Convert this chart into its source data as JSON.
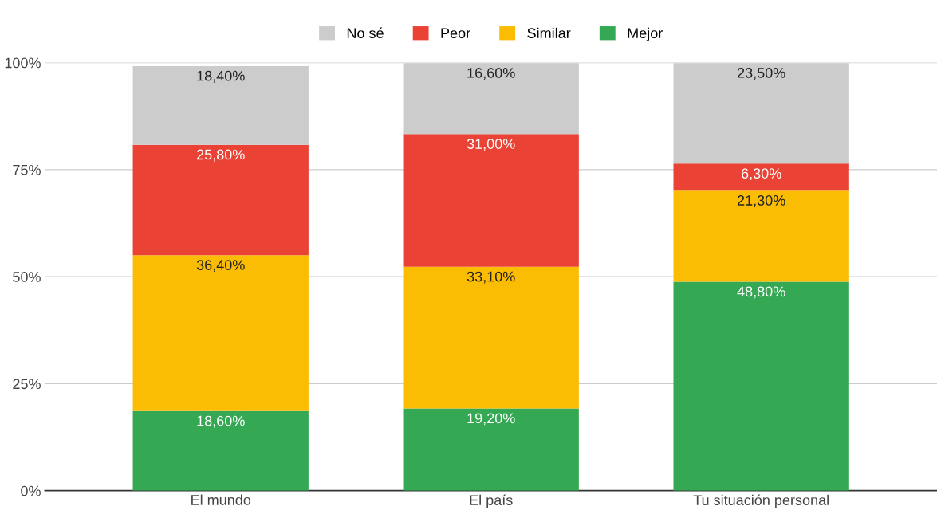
{
  "chart_data": {
    "type": "bar",
    "stacked": true,
    "categories": [
      "El mundo",
      "El país",
      "Tu situación personal"
    ],
    "series": [
      {
        "name": "Mejor",
        "color": "#34a853",
        "values": [
          18.6,
          19.2,
          48.8
        ],
        "value_labels": [
          "18,60%",
          "19,20%",
          "48,80%"
        ]
      },
      {
        "name": "Similar",
        "color": "#fbbc04",
        "values": [
          36.4,
          33.1,
          21.3
        ],
        "value_labels": [
          "36,40%",
          "33,10%",
          "21,30%"
        ]
      },
      {
        "name": "Peor",
        "color": "#ea4335",
        "values": [
          25.8,
          31.0,
          6.3
        ],
        "value_labels": [
          "25,80%",
          "31,00%",
          "6,30%"
        ]
      },
      {
        "name": "No sé",
        "color": "#cccccc",
        "values": [
          18.4,
          16.6,
          23.5
        ],
        "value_labels": [
          "18,40%",
          "16,60%",
          "23,50%"
        ]
      }
    ],
    "ylim": [
      0,
      100
    ],
    "yticks": [
      {
        "value": 0,
        "label": "0%"
      },
      {
        "value": 25,
        "label": "25%"
      },
      {
        "value": 50,
        "label": "50%"
      },
      {
        "value": 75,
        "label": "75%"
      },
      {
        "value": 100,
        "label": "100%"
      }
    ],
    "grid": "y",
    "legend": "top"
  }
}
